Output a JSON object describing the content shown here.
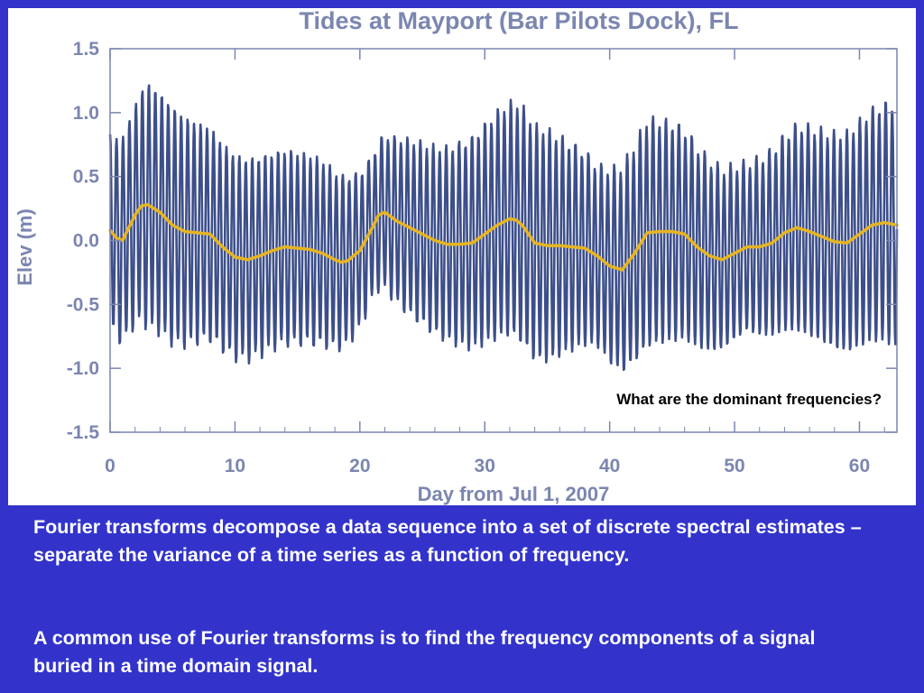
{
  "slide": {
    "paragraphs": [
      "Fourier transforms decompose a data sequence into a set of discrete spectral estimates – separate the variance of a time series as a function of frequency.",
      "A common use of Fourier transforms is to find the frequency components of a signal buried in a time domain signal."
    ]
  },
  "colors": {
    "background": "#3333cc",
    "raw_series": "#3d4f8a",
    "filtered_series": "#e6b422",
    "axis_text": "#7b86b0"
  },
  "chart_data": {
    "type": "line",
    "title": "Tides at Mayport (Bar Pilots Dock), FL",
    "xlabel": "Day from Jul 1, 2007",
    "ylabel": "Elev (m)",
    "xlim": [
      0,
      63
    ],
    "ylim": [
      -1.5,
      1.5
    ],
    "xticks": [
      0,
      10,
      20,
      30,
      40,
      50,
      60
    ],
    "yticks": [
      1.5,
      1.0,
      0.5,
      0.0,
      -0.5,
      -1.0,
      -1.5
    ],
    "xtick_labels": [
      "0",
      "10",
      "20",
      "30",
      "40",
      "50",
      "60"
    ],
    "ytick_labels": [
      "1.5",
      "1.0",
      "0.5",
      "0.0",
      "-0.5",
      "-1.0",
      "-1.5"
    ],
    "annotation": "What are the dominant frequencies?",
    "grid": false,
    "series": [
      {
        "kind": "raw_tide",
        "color": "#3d4f8a",
        "semidiurnal_period_days": 0.5175,
        "envelope_x": [
          0,
          2,
          3,
          5,
          7,
          9,
          11,
          14,
          17,
          19,
          21,
          22,
          24,
          27,
          29,
          31,
          33,
          35,
          37,
          39,
          41,
          43,
          45,
          47,
          49,
          51,
          53,
          55,
          57,
          59,
          61,
          63
        ],
        "envelope_y": [
          0.75,
          0.85,
          0.95,
          0.92,
          0.85,
          0.8,
          0.78,
          0.75,
          0.72,
          0.65,
          0.55,
          0.6,
          0.68,
          0.75,
          0.82,
          0.88,
          0.92,
          0.9,
          0.8,
          0.7,
          0.8,
          0.88,
          0.85,
          0.78,
          0.7,
          0.65,
          0.72,
          0.8,
          0.82,
          0.85,
          0.9,
          0.95
        ]
      },
      {
        "kind": "low_pass_filtered",
        "color": "#e6b422",
        "x": [
          0,
          0.5,
          1,
          1.5,
          2,
          2.5,
          3,
          4,
          5,
          6,
          7,
          8,
          9,
          10,
          11,
          12,
          13,
          14,
          15,
          16,
          17,
          18,
          18.5,
          19,
          20,
          21,
          21.5,
          22,
          23,
          24,
          25,
          26,
          27,
          28,
          29,
          30,
          31,
          32,
          32.5,
          33,
          34,
          35,
          36,
          37,
          38,
          39,
          40,
          41,
          42,
          43,
          44,
          45,
          46,
          47,
          48,
          49,
          50,
          51,
          52,
          53,
          54,
          55,
          56,
          57,
          58,
          59,
          60,
          61,
          62,
          63
        ],
        "y": [
          0.08,
          0.02,
          0.0,
          0.1,
          0.2,
          0.27,
          0.28,
          0.22,
          0.12,
          0.07,
          0.06,
          0.05,
          -0.05,
          -0.13,
          -0.15,
          -0.12,
          -0.08,
          -0.05,
          -0.06,
          -0.07,
          -0.1,
          -0.15,
          -0.17,
          -0.16,
          -0.08,
          0.1,
          0.2,
          0.22,
          0.15,
          0.1,
          0.05,
          0.0,
          -0.03,
          -0.03,
          -0.02,
          0.05,
          0.12,
          0.17,
          0.16,
          0.12,
          -0.02,
          -0.04,
          -0.04,
          -0.05,
          -0.06,
          -0.12,
          -0.2,
          -0.23,
          -0.1,
          0.06,
          0.07,
          0.07,
          0.05,
          -0.05,
          -0.12,
          -0.15,
          -0.1,
          -0.05,
          -0.05,
          -0.02,
          0.06,
          0.1,
          0.07,
          0.03,
          -0.01,
          -0.02,
          0.05,
          0.12,
          0.14,
          0.12
        ]
      }
    ]
  }
}
